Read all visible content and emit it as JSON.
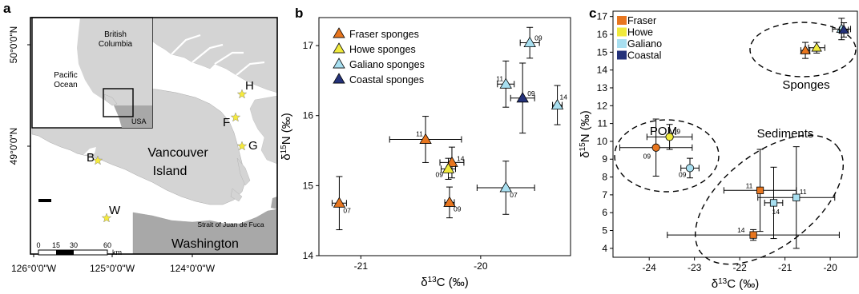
{
  "panels": {
    "a": "a",
    "b": "b",
    "c": "c"
  },
  "map": {
    "labels": {
      "british_columbia": [
        "British",
        "Columbia"
      ],
      "pacific_ocean": [
        "Pacific",
        "Ocean"
      ],
      "usa": "USA",
      "vancouver_island": [
        "Vancouver",
        "Island"
      ],
      "washington": "Washington",
      "strait": "Strait of Juan de Fuca",
      "km": "km"
    },
    "sites": [
      "H",
      "F",
      "G",
      "B",
      "W"
    ],
    "lat_ticks": [
      "50°0'0\"N",
      "49°0'0\"N"
    ],
    "lon_ticks": [
      "126°0'0\"W",
      "125°0'0\"W",
      "124°0'0\"W"
    ],
    "scale_ticks": [
      "0",
      "15",
      "30",
      "60"
    ],
    "colors": {
      "land": "#d4d4d4",
      "water": "#ffffff",
      "usa": "#a8a8a8",
      "star": "#f5ea3c"
    }
  },
  "chart_data": [
    {
      "type": "scatter",
      "panel": "b",
      "xlabel": "δ13C (‰)",
      "ylabel": "δ15N (‰)",
      "xlim": [
        -21.35,
        -19.25
      ],
      "ylim": [
        14,
        17.4
      ],
      "xticks": [
        -21,
        -20
      ],
      "yticks": [
        14,
        15,
        16,
        17
      ],
      "legend": [
        {
          "name": "Fraser sponges",
          "color": "#e8761f"
        },
        {
          "name": "Howe sponges",
          "color": "#f0ea3c"
        },
        {
          "name": "Galiano sponges",
          "color": "#a8dff0"
        },
        {
          "name": "Coastal sponges",
          "color": "#24327a"
        }
      ],
      "legend_position": "top-left",
      "points": [
        {
          "series": 0,
          "x": -21.18,
          "y": 14.75,
          "xerr": 0.06,
          "yerr": 0.38,
          "label": "07"
        },
        {
          "series": 0,
          "x": -20.46,
          "y": 15.66,
          "xerr": 0.3,
          "yerr": 0.33,
          "label": "11"
        },
        {
          "series": 0,
          "x": -20.24,
          "y": 15.33,
          "xerr": 0.1,
          "yerr": 0.22,
          "label": "14"
        },
        {
          "series": 0,
          "x": -20.26,
          "y": 14.76,
          "xerr": 0.04,
          "yerr": 0.22,
          "label": "09"
        },
        {
          "series": 1,
          "x": -20.27,
          "y": 15.24,
          "xerr": 0.06,
          "yerr": 0.15,
          "label": "09"
        },
        {
          "series": 2,
          "x": -19.59,
          "y": 17.04,
          "xerr": 0.08,
          "yerr": 0.22,
          "label": "09"
        },
        {
          "series": 2,
          "x": -19.79,
          "y": 16.45,
          "xerr": 0.07,
          "yerr": 0.33,
          "label": "11"
        },
        {
          "series": 2,
          "x": -19.36,
          "y": 16.15,
          "xerr": 0.04,
          "yerr": 0.28,
          "label": "14"
        },
        {
          "series": 2,
          "x": -19.79,
          "y": 14.97,
          "xerr": 0.24,
          "yerr": 0.38,
          "label": "07"
        },
        {
          "series": 3,
          "x": -19.65,
          "y": 16.25,
          "xerr": 0.1,
          "yerr": 0.5,
          "label": "09"
        }
      ]
    },
    {
      "type": "scatter",
      "panel": "c",
      "xlabel": "δ13C (‰)",
      "ylabel": "δ15N (‰)",
      "xlim": [
        -24.8,
        -19.4
      ],
      "ylim": [
        3.5,
        17.3
      ],
      "xticks": [
        -24,
        -23,
        -22,
        -21,
        -20
      ],
      "yticks": [
        4,
        5,
        6,
        7,
        8,
        9,
        10,
        11,
        12,
        13,
        14,
        15,
        16,
        17
      ],
      "legend": [
        {
          "name": "Fraser",
          "color": "#e8761f"
        },
        {
          "name": "Howe",
          "color": "#f0ea3c"
        },
        {
          "name": "Galiano",
          "color": "#a8dff0"
        },
        {
          "name": "Coastal",
          "color": "#24327a"
        }
      ],
      "legend_position": "top-left",
      "groups": [
        {
          "name": "Sponges"
        },
        {
          "name": "POM"
        },
        {
          "name": "Sediments"
        }
      ],
      "points": [
        {
          "series": 0,
          "marker": "triangle",
          "x": -20.55,
          "y": 15.1,
          "xerr": 0.1,
          "yerr": 0.45,
          "label": ""
        },
        {
          "series": 1,
          "marker": "triangle",
          "x": -20.3,
          "y": 15.25,
          "xerr": 0.18,
          "yerr": 0.3,
          "label": ""
        },
        {
          "series": 2,
          "marker": "triangle",
          "x": -19.75,
          "y": 16.3,
          "xerr": 0.2,
          "yerr": 0.6,
          "label": ""
        },
        {
          "series": 3,
          "marker": "triangle",
          "x": -19.7,
          "y": 16.25,
          "xerr": 0.1,
          "yerr": 0.4,
          "label": ""
        },
        {
          "series": 0,
          "marker": "circle",
          "x": -23.85,
          "y": 9.65,
          "xerr": 0.8,
          "yerr": 1.6,
          "label": "09"
        },
        {
          "series": 1,
          "marker": "circle",
          "x": -23.55,
          "y": 10.25,
          "xerr": 0.5,
          "yerr": 0.7,
          "label": "09"
        },
        {
          "series": 2,
          "marker": "circle",
          "x": -23.1,
          "y": 8.5,
          "xerr": 0.2,
          "yerr": 0.55,
          "label": "09"
        },
        {
          "series": 0,
          "marker": "square",
          "x": -21.55,
          "y": 7.25,
          "xerr": 0.8,
          "yerr": 2.3,
          "label": "11"
        },
        {
          "series": 2,
          "marker": "square",
          "x": -21.25,
          "y": 6.55,
          "xerr": 0.2,
          "yerr": 2.0,
          "label": "14"
        },
        {
          "series": 2,
          "marker": "square",
          "x": -20.75,
          "y": 6.85,
          "xerr": 0.85,
          "yerr": 2.85,
          "label": "11"
        },
        {
          "series": 0,
          "marker": "square",
          "x": -21.7,
          "y": 4.75,
          "xerr": 1.9,
          "yerr": 0.3,
          "label": "14"
        }
      ]
    }
  ]
}
